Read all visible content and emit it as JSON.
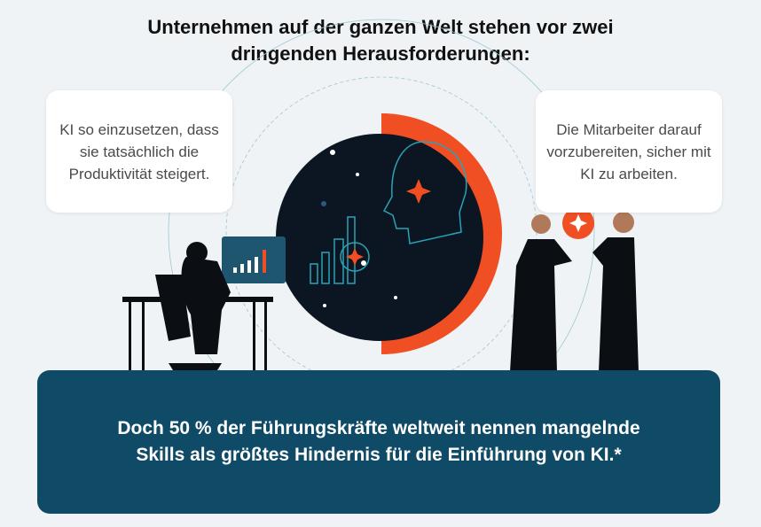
{
  "title": {
    "line1": "Unternehmen auf der ganzen Welt stehen vor zwei",
    "line2": "dringenden Herausforderungen:"
  },
  "bubbles": [
    {
      "text": "KI so einzusetzen, dass sie tatsächlich die Produktivität steigert."
    },
    {
      "text": "Die Mitarbeiter darauf vorzubereiten, sicher mit KI zu arbeiten."
    }
  ],
  "statement": "Doch 50 % der Führungskräfte weltweit nennen mangelnde Skills als größtes Hindernis für die Einführung von KI.*",
  "colors": {
    "accent": "#f04e23",
    "panel": "#0f4a66",
    "dark_circle": "#0b1622",
    "line": "#2aa3b5"
  }
}
